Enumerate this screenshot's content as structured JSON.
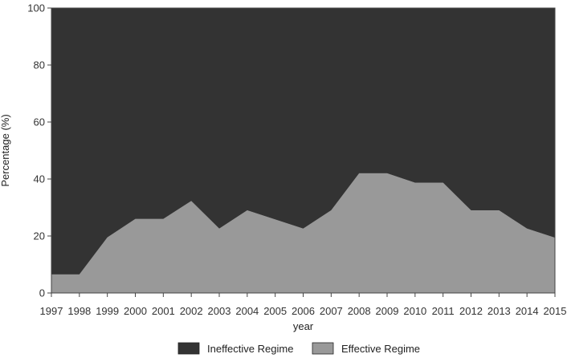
{
  "chart_data": {
    "type": "area",
    "stacked": true,
    "percent": true,
    "x": [
      1997,
      1998,
      1999,
      2000,
      2001,
      2002,
      2003,
      2004,
      2005,
      2006,
      2007,
      2008,
      2009,
      2010,
      2011,
      2012,
      2013,
      2014,
      2015
    ],
    "series": [
      {
        "name": "Effective Regime",
        "color": "#999999",
        "values": [
          6.5,
          6.5,
          19.5,
          26,
          26,
          32.3,
          22.6,
          29,
          25.8,
          22.6,
          29,
          42,
          42,
          38.7,
          38.7,
          29,
          29,
          22.6,
          19.4
        ]
      },
      {
        "name": "Ineffective Regime",
        "color": "#333333",
        "values": [
          93.5,
          93.5,
          80.5,
          74,
          74,
          67.7,
          77.4,
          71,
          74.2,
          77.4,
          71,
          58,
          58,
          61.3,
          61.3,
          71,
          71,
          77.4,
          80.6
        ]
      }
    ],
    "xlabel": "year",
    "ylabel": "Percentage (%)",
    "ylim": [
      0,
      100
    ],
    "yticks": [
      0,
      20,
      40,
      60,
      80,
      100
    ],
    "xticks": [
      "1997",
      "1998",
      "1999",
      "2000",
      "2001",
      "2002",
      "2003",
      "2004",
      "2005",
      "2006",
      "2007",
      "2008",
      "2009",
      "2010",
      "2011",
      "2012",
      "2013",
      "2014",
      "2015"
    ],
    "grid": false,
    "legend": {
      "position": "bottom",
      "entries": [
        "Ineffective Regime",
        "Effective Regime"
      ]
    }
  }
}
